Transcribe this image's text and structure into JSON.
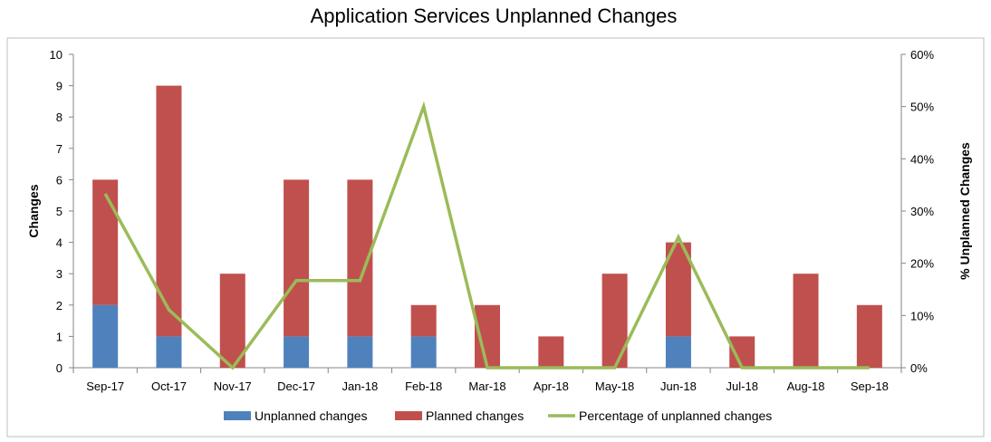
{
  "chart_data": {
    "type": "bar",
    "stacked": true,
    "title": "Application Services Unplanned Changes",
    "categories": [
      "Sep-17",
      "Oct-17",
      "Nov-17",
      "Dec-17",
      "Jan-18",
      "Feb-18",
      "Mar-18",
      "Apr-18",
      "May-18",
      "Jun-18",
      "Jul-18",
      "Aug-18",
      "Sep-18"
    ],
    "series": [
      {
        "name": "Unplanned changes",
        "type": "bar",
        "color": "#4f81bd",
        "values": [
          2,
          1,
          0,
          1,
          1,
          1,
          0,
          0,
          0,
          1,
          0,
          0,
          0
        ]
      },
      {
        "name": "Planned changes",
        "type": "bar",
        "color": "#c0504d",
        "values": [
          4,
          8,
          3,
          5,
          5,
          1,
          2,
          1,
          3,
          3,
          1,
          3,
          2
        ]
      },
      {
        "name": "Percentage of unplanned changes",
        "type": "line",
        "axis": "right",
        "color": "#9bbb59",
        "values": [
          33.3,
          11.1,
          0,
          16.7,
          16.7,
          50,
          0,
          0,
          0,
          25,
          0,
          0,
          0
        ]
      }
    ],
    "ylabel": "Changes",
    "ylim": [
      0,
      10
    ],
    "yticks": [
      "0",
      "1",
      "2",
      "3",
      "4",
      "5",
      "6",
      "7",
      "8",
      "9",
      "10"
    ],
    "y2label": "% Unplanned Changes",
    "y2lim": [
      0,
      60
    ],
    "y2ticks": [
      "0%",
      "10%",
      "20%",
      "30%",
      "40%",
      "50%",
      "60%"
    ],
    "grid": false,
    "legend": "bottom"
  }
}
